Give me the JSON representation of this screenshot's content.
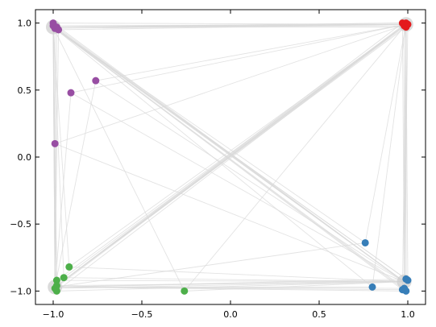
{
  "chart_data": {
    "type": "scatter",
    "title": "",
    "xlabel": "",
    "ylabel": "",
    "xlim": [
      -1.1,
      1.1
    ],
    "ylim": [
      -1.1,
      1.1
    ],
    "grid": false,
    "x_ticks": [
      {
        "value": -1.0,
        "label": "−1.0"
      },
      {
        "value": -0.5,
        "label": "−0.5"
      },
      {
        "value": 0.0,
        "label": "0.0"
      },
      {
        "value": 0.5,
        "label": "0.5"
      },
      {
        "value": 1.0,
        "label": "1.0"
      }
    ],
    "y_ticks": [
      {
        "value": 1.0,
        "label": "1.0"
      },
      {
        "value": 0.5,
        "label": "0.5"
      },
      {
        "value": 0.0,
        "label": "0.0"
      },
      {
        "value": -0.5,
        "label": "−0.5"
      },
      {
        "value": -1.0,
        "label": "−1.0"
      }
    ],
    "colors": {
      "purple": "#984ea3",
      "red": "#e41a1c",
      "green": "#4daf4a",
      "blue": "#377eb8",
      "edge": "#d9d9d9",
      "anchor": "#cccccc"
    },
    "anchors": [
      {
        "x": -1.0,
        "y": 0.97
      },
      {
        "x": 0.99,
        "y": 0.99
      },
      {
        "x": -0.99,
        "y": -0.97
      },
      {
        "x": 0.98,
        "y": -0.93
      }
    ],
    "series": [
      {
        "color_key": "purple",
        "points": [
          {
            "x": -1.0,
            "y": 1.0
          },
          {
            "x": -1.0,
            "y": 0.98
          },
          {
            "x": -0.99,
            "y": 0.96
          },
          {
            "x": -0.98,
            "y": 0.97
          },
          {
            "x": -0.97,
            "y": 0.95
          },
          {
            "x": -0.76,
            "y": 0.57
          },
          {
            "x": -0.9,
            "y": 0.48
          },
          {
            "x": -0.99,
            "y": 0.1
          }
        ]
      },
      {
        "color_key": "red",
        "points": [
          {
            "x": 0.97,
            "y": 1.0
          },
          {
            "x": 0.99,
            "y": 1.0
          },
          {
            "x": 1.0,
            "y": 0.99
          },
          {
            "x": 0.98,
            "y": 0.98
          },
          {
            "x": 0.99,
            "y": 0.97
          }
        ]
      },
      {
        "color_key": "green",
        "points": [
          {
            "x": -0.91,
            "y": -0.82
          },
          {
            "x": -0.94,
            "y": -0.9
          },
          {
            "x": -0.98,
            "y": -0.92
          },
          {
            "x": -0.98,
            "y": -0.96
          },
          {
            "x": -0.99,
            "y": -0.98
          },
          {
            "x": -0.98,
            "y": -1.0
          },
          {
            "x": -0.26,
            "y": -1.0
          }
        ]
      },
      {
        "color_key": "blue",
        "points": [
          {
            "x": 0.76,
            "y": -0.64
          },
          {
            "x": 0.8,
            "y": -0.97
          },
          {
            "x": 0.97,
            "y": -0.99
          },
          {
            "x": 0.99,
            "y": -1.0
          },
          {
            "x": 0.99,
            "y": -0.91
          },
          {
            "x": 1.0,
            "y": -0.92
          },
          {
            "x": 0.98,
            "y": -0.98
          }
        ]
      }
    ]
  }
}
